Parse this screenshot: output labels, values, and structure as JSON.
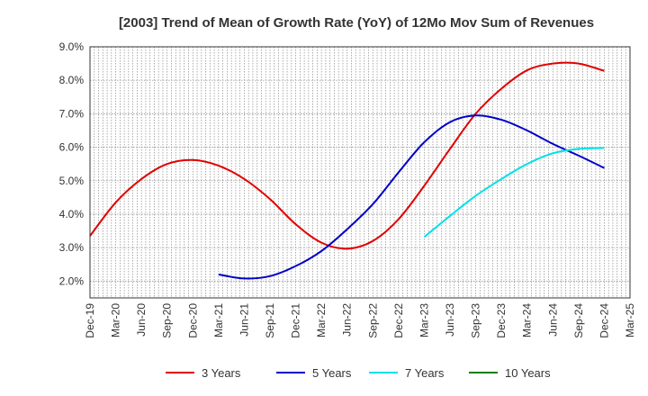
{
  "chart_data": {
    "type": "line",
    "title": "[2003]  Trend of Mean of Growth Rate (YoY) of 12Mo Mov Sum of Revenues",
    "xlabel": "",
    "ylabel": "",
    "categories": [
      "Dec-19",
      "Mar-20",
      "Jun-20",
      "Sep-20",
      "Dec-20",
      "Mar-21",
      "Jun-21",
      "Sep-21",
      "Dec-21",
      "Mar-22",
      "Jun-22",
      "Sep-22",
      "Dec-22",
      "Mar-23",
      "Jun-23",
      "Sep-23",
      "Dec-23",
      "Mar-24",
      "Jun-24",
      "Sep-24",
      "Dec-24",
      "Mar-25"
    ],
    "y_ticks": [
      "2.0%",
      "3.0%",
      "4.0%",
      "5.0%",
      "6.0%",
      "7.0%",
      "8.0%",
      "9.0%"
    ],
    "ylim": [
      1.5,
      9.0
    ],
    "grid": true,
    "legend_position": "bottom",
    "series": [
      {
        "name": "3 Years",
        "color": "#e00000",
        "values": [
          3.35,
          4.35,
          5.05,
          5.5,
          5.62,
          5.45,
          5.05,
          4.45,
          3.7,
          3.15,
          2.97,
          3.2,
          3.85,
          4.85,
          5.95,
          7.0,
          7.75,
          8.3,
          8.5,
          8.5,
          8.28,
          null
        ]
      },
      {
        "name": "5 Years",
        "color": "#0000c8",
        "values": [
          null,
          null,
          null,
          null,
          null,
          2.2,
          2.08,
          2.15,
          2.45,
          2.9,
          3.55,
          4.3,
          5.25,
          6.15,
          6.75,
          6.95,
          6.82,
          6.5,
          6.1,
          5.75,
          5.38,
          null
        ]
      },
      {
        "name": "7 Years",
        "color": "#00e0e8",
        "values": [
          null,
          null,
          null,
          null,
          null,
          null,
          null,
          null,
          null,
          null,
          null,
          null,
          null,
          3.32,
          3.95,
          4.55,
          5.05,
          5.5,
          5.82,
          5.95,
          5.98,
          null
        ]
      },
      {
        "name": "10 Years",
        "color": "#008000",
        "values": [
          null,
          null,
          null,
          null,
          null,
          null,
          null,
          null,
          null,
          null,
          null,
          null,
          null,
          null,
          null,
          null,
          null,
          null,
          null,
          null,
          null,
          null
        ]
      }
    ]
  }
}
